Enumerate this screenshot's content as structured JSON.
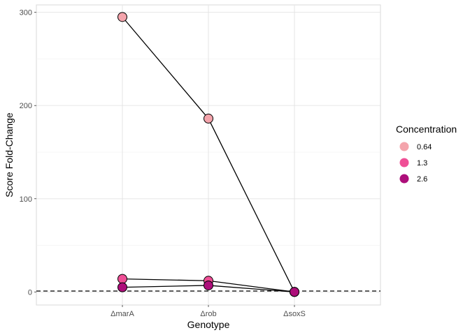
{
  "chart_data": {
    "type": "line",
    "xlabel": "Genotype",
    "ylabel": "Score Fold-Change",
    "categories": [
      "ΔmarA",
      "Δrob",
      "ΔsoxS"
    ],
    "ylim": [
      -14,
      308
    ],
    "yticks": [
      0,
      100,
      200,
      300
    ],
    "reference_line": {
      "y": 1,
      "style": "dashed"
    },
    "grid": true,
    "legend": {
      "title": "Concentration",
      "position": "right"
    },
    "series": [
      {
        "name": "0.64",
        "color": "#f4a4ac",
        "values": [
          295,
          186,
          0
        ]
      },
      {
        "name": "1.3",
        "color": "#ef4f96",
        "values": [
          14,
          12,
          0
        ]
      },
      {
        "name": "2.6",
        "color": "#ad0e7a",
        "values": [
          5,
          7,
          0
        ]
      }
    ]
  }
}
